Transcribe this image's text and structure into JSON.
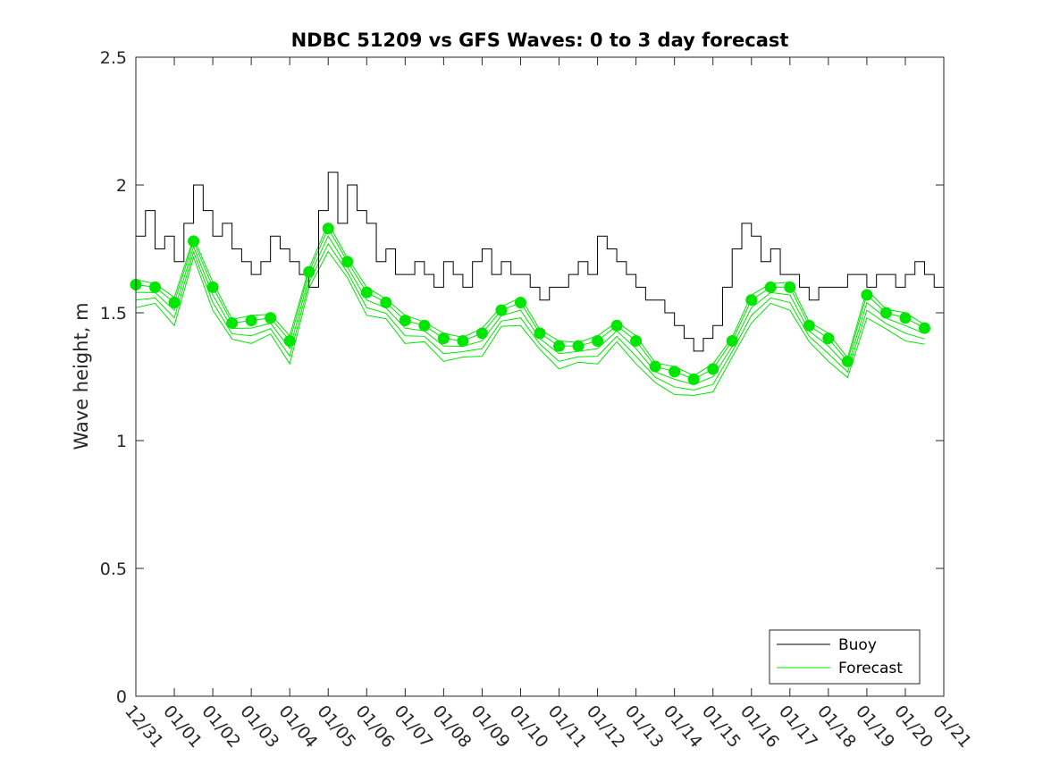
{
  "chart_data": {
    "type": "line",
    "title": "NDBC 51209 vs GFS Waves: 0 to 3 day forecast",
    "xlabel": "",
    "ylabel": "Wave height, m",
    "ylim": [
      0,
      2.5
    ],
    "yticks": [
      "0",
      "0.5",
      "1",
      "1.5",
      "2",
      "2.5"
    ],
    "ytick_values": [
      0,
      0.5,
      1,
      1.5,
      2,
      2.5
    ],
    "xlim_days": [
      0,
      21
    ],
    "xtick_labels": [
      "12/31",
      "01/01",
      "01/02",
      "01/03",
      "01/04",
      "01/05",
      "01/06",
      "01/07",
      "01/08",
      "01/09",
      "01/10",
      "01/11",
      "01/12",
      "01/13",
      "01/14",
      "01/15",
      "01/16",
      "01/17",
      "01/18",
      "01/19",
      "01/20",
      "01/21"
    ],
    "legend": {
      "position": "bottom-right",
      "entries": [
        "Buoy",
        "Forecast"
      ]
    },
    "colors": {
      "buoy": "#000000",
      "forecast": "#00e600"
    },
    "series": [
      {
        "name": "Buoy",
        "x": [
          0.0,
          0.25,
          0.5,
          0.75,
          1.0,
          1.25,
          1.5,
          1.75,
          2.0,
          2.25,
          2.5,
          2.75,
          3.0,
          3.25,
          3.5,
          3.75,
          4.0,
          4.25,
          4.5,
          4.75,
          5.0,
          5.25,
          5.5,
          5.75,
          6.0,
          6.25,
          6.5,
          6.75,
          7.0,
          7.25,
          7.5,
          7.75,
          8.0,
          8.25,
          8.5,
          8.75,
          9.0,
          9.25,
          9.5,
          9.75,
          10.0,
          10.25,
          10.5,
          10.75,
          11.0,
          11.25,
          11.5,
          11.75,
          12.0,
          12.25,
          12.5,
          12.75,
          13.0,
          13.25,
          13.5,
          13.75,
          14.0,
          14.25,
          14.5,
          14.75,
          15.0,
          15.25,
          15.5,
          15.75,
          16.0,
          16.25,
          16.5,
          16.75,
          17.0,
          17.25,
          17.5,
          17.75,
          18.0,
          18.25,
          18.5,
          18.75,
          19.0,
          19.25,
          19.5,
          19.75,
          20.0,
          20.25,
          20.5,
          20.75,
          21.0
        ],
        "values": [
          1.8,
          1.9,
          1.75,
          1.8,
          1.7,
          1.85,
          2.0,
          1.9,
          1.8,
          1.85,
          1.75,
          1.7,
          1.65,
          1.7,
          1.8,
          1.75,
          1.7,
          1.65,
          1.6,
          1.9,
          2.05,
          1.85,
          2.0,
          1.9,
          1.85,
          1.7,
          1.75,
          1.65,
          1.65,
          1.7,
          1.65,
          1.6,
          1.7,
          1.65,
          1.6,
          1.7,
          1.75,
          1.65,
          1.7,
          1.65,
          1.65,
          1.6,
          1.55,
          1.6,
          1.6,
          1.65,
          1.7,
          1.65,
          1.8,
          1.75,
          1.7,
          1.65,
          1.6,
          1.55,
          1.55,
          1.5,
          1.45,
          1.4,
          1.35,
          1.4,
          1.45,
          1.6,
          1.75,
          1.85,
          1.8,
          1.7,
          1.75,
          1.65,
          1.65,
          1.6,
          1.55,
          1.6,
          1.6,
          1.6,
          1.65,
          1.65,
          1.6,
          1.65,
          1.65,
          1.6,
          1.65,
          1.7,
          1.65,
          1.6,
          1.6
        ]
      },
      {
        "name": "Forecast",
        "x": [
          0.0,
          0.5,
          1.0,
          1.5,
          2.0,
          2.5,
          3.0,
          3.5,
          4.0,
          4.5,
          5.0,
          5.5,
          6.0,
          6.5,
          7.0,
          7.5,
          8.0,
          8.5,
          9.0,
          9.5,
          10.0,
          10.5,
          11.0,
          11.5,
          12.0,
          12.5,
          13.0,
          13.5,
          14.0,
          14.5,
          15.0,
          15.5,
          16.0,
          16.5,
          17.0,
          17.5,
          18.0,
          18.5,
          19.0,
          19.5,
          20.0,
          20.5
        ],
        "values": [
          1.61,
          1.6,
          1.54,
          1.78,
          1.6,
          1.46,
          1.47,
          1.48,
          1.39,
          1.66,
          1.83,
          1.7,
          1.58,
          1.54,
          1.47,
          1.45,
          1.4,
          1.39,
          1.42,
          1.51,
          1.54,
          1.42,
          1.37,
          1.37,
          1.39,
          1.45,
          1.39,
          1.29,
          1.27,
          1.24,
          1.28,
          1.39,
          1.55,
          1.6,
          1.6,
          1.45,
          1.4,
          1.31,
          1.57,
          1.5,
          1.48,
          1.44
        ]
      }
    ]
  }
}
